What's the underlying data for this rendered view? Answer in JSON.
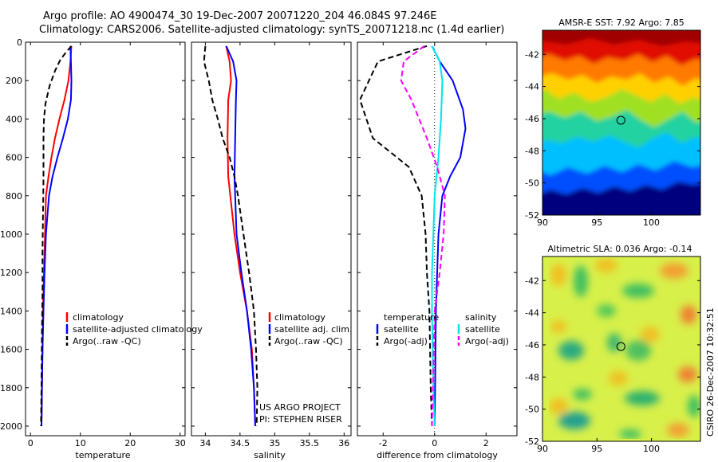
{
  "title": {
    "line1": "Argo profile: AO 4900474_30 19-Dec-2007 20071220_204 46.084S 97.246E",
    "line2": "Climatology: CARS2006. Satellite-adjusted climatology: synTS_20071218.nc (1.4d earlier)"
  },
  "colors": {
    "climatology": "#ff0000",
    "satellite": "#0000ff",
    "argo": "#000000",
    "satellite_salinity": "#00e5ee",
    "argo_salinity_diff": "#ff00ff"
  },
  "chart_data": [
    {
      "type": "line",
      "xlabel": "temperature",
      "xlim": [
        -1,
        31
      ],
      "ylim": [
        2050,
        0
      ],
      "xticks": [
        "0",
        "10",
        "20",
        "30"
      ],
      "xtick_values": [
        0,
        10,
        20,
        30
      ],
      "yticks": [
        "0",
        "200",
        "400",
        "600",
        "800",
        "1000",
        "1200",
        "1400",
        "1600",
        "1800",
        "2000"
      ],
      "ytick_values": [
        0,
        200,
        400,
        600,
        800,
        1000,
        1200,
        1400,
        1600,
        1800,
        2000
      ],
      "legend": [
        "climatology",
        "satellite-adjusted climatology",
        "Argo(..raw -QC)"
      ],
      "series": [
        {
          "name": "climatology",
          "color": "#ff0000",
          "dash": "",
          "points": [
            [
              8.2,
              20
            ],
            [
              8.0,
              100
            ],
            [
              7.6,
              200
            ],
            [
              6.8,
              300
            ],
            [
              5.8,
              400
            ],
            [
              4.9,
              500
            ],
            [
              4.2,
              600
            ],
            [
              3.6,
              700
            ],
            [
              3.1,
              800
            ],
            [
              2.9,
              1000
            ],
            [
              2.7,
              1200
            ],
            [
              2.5,
              1400
            ],
            [
              2.4,
              1600
            ],
            [
              2.3,
              1800
            ],
            [
              2.2,
              2000
            ]
          ]
        },
        {
          "name": "satellite-adjusted climatology",
          "color": "#0000ff",
          "dash": "",
          "points": [
            [
              8.0,
              20
            ],
            [
              8.1,
              100
            ],
            [
              8.2,
              200
            ],
            [
              8.1,
              300
            ],
            [
              7.5,
              400
            ],
            [
              6.5,
              500
            ],
            [
              5.4,
              600
            ],
            [
              4.4,
              700
            ],
            [
              3.7,
              800
            ],
            [
              3.1,
              1000
            ],
            [
              2.8,
              1200
            ],
            [
              2.6,
              1400
            ],
            [
              2.4,
              1600
            ],
            [
              2.3,
              1800
            ],
            [
              2.2,
              2000
            ]
          ]
        },
        {
          "name": "Argo(..raw -QC)",
          "color": "#000000",
          "dash": "7,4",
          "points": [
            [
              8.2,
              20
            ],
            [
              7.2,
              50
            ],
            [
              6.0,
              90
            ],
            [
              4.9,
              150
            ],
            [
              3.8,
              230
            ],
            [
              3.0,
              320
            ],
            [
              2.7,
              400
            ],
            [
              2.6,
              500
            ],
            [
              2.6,
              700
            ],
            [
              2.5,
              900
            ],
            [
              2.4,
              1100
            ],
            [
              2.4,
              1300
            ],
            [
              2.3,
              1500
            ],
            [
              2.2,
              1800
            ],
            [
              2.1,
              2000
            ]
          ]
        }
      ]
    },
    {
      "type": "line",
      "xlabel": "salinity",
      "xlim": [
        33.8,
        36.1
      ],
      "ylim": [
        2050,
        0
      ],
      "xticks": [
        "34",
        "34.5",
        "35",
        "35.5",
        "36"
      ],
      "xtick_values": [
        34,
        34.5,
        35,
        35.5,
        36
      ],
      "legend": [
        "climatology",
        "satellite adj. clim.",
        "Argo(..raw -QC)"
      ],
      "annotation": [
        "US ARGO PROJECT",
        "PI: STEPHEN RISER"
      ],
      "series": [
        {
          "name": "climatology",
          "color": "#ff0000",
          "dash": "",
          "points": [
            [
              34.3,
              20
            ],
            [
              34.35,
              100
            ],
            [
              34.37,
              200
            ],
            [
              34.33,
              300
            ],
            [
              34.32,
              500
            ],
            [
              34.33,
              700
            ],
            [
              34.36,
              800
            ],
            [
              34.42,
              1000
            ],
            [
              34.5,
              1200
            ],
            [
              34.6,
              1400
            ],
            [
              34.67,
              1600
            ],
            [
              34.7,
              1800
            ],
            [
              34.72,
              2000
            ]
          ]
        },
        {
          "name": "satellite adj. clim.",
          "color": "#0000ff",
          "dash": "",
          "points": [
            [
              34.3,
              20
            ],
            [
              34.4,
              100
            ],
            [
              34.45,
              200
            ],
            [
              34.44,
              300
            ],
            [
              34.43,
              500
            ],
            [
              34.42,
              700
            ],
            [
              34.43,
              800
            ],
            [
              34.45,
              1000
            ],
            [
              34.52,
              1200
            ],
            [
              34.6,
              1400
            ],
            [
              34.66,
              1600
            ],
            [
              34.7,
              1800
            ],
            [
              34.72,
              2000
            ]
          ]
        },
        {
          "name": "Argo(..raw -QC)",
          "color": "#000000",
          "dash": "7,4",
          "points": [
            [
              34.0,
              20
            ],
            [
              33.98,
              100
            ],
            [
              34.05,
              200
            ],
            [
              34.1,
              300
            ],
            [
              34.18,
              400
            ],
            [
              34.25,
              500
            ],
            [
              34.35,
              600
            ],
            [
              34.42,
              700
            ],
            [
              34.47,
              800
            ],
            [
              34.55,
              1000
            ],
            [
              34.63,
              1200
            ],
            [
              34.7,
              1400
            ],
            [
              34.73,
              1600
            ],
            [
              34.75,
              1800
            ],
            [
              34.74,
              2000
            ]
          ]
        }
      ]
    },
    {
      "type": "line",
      "xlabel": "difference from climatology",
      "xlim": [
        -3,
        3.2
      ],
      "ylim": [
        2050,
        0
      ],
      "xticks": [
        "-2",
        "0",
        "2"
      ],
      "xtick_values": [
        -2,
        0,
        2
      ],
      "legend_left_title": "temperature",
      "legend_left": [
        "satellite",
        "Argo(-adj)"
      ],
      "legend_right_title": "salinity",
      "legend_right": [
        "satellite",
        "Argo(-adj)"
      ],
      "series": [
        {
          "name": "temperature satellite",
          "color": "#0000ff",
          "dash": "",
          "points": [
            [
              -0.1,
              20
            ],
            [
              0.2,
              100
            ],
            [
              0.7,
              200
            ],
            [
              1.1,
              350
            ],
            [
              1.2,
              450
            ],
            [
              1.0,
              600
            ],
            [
              0.6,
              700
            ],
            [
              0.3,
              800
            ],
            [
              0.15,
              1000
            ],
            [
              0.1,
              1200
            ],
            [
              0.05,
              1400
            ],
            [
              0.02,
              1800
            ],
            [
              0.0,
              2000
            ]
          ]
        },
        {
          "name": "temperature Argo(-adj)",
          "color": "#000000",
          "dash": "7,4",
          "points": [
            [
              -0.3,
              20
            ],
            [
              -2.2,
              100
            ],
            [
              -2.9,
              300
            ],
            [
              -2.4,
              500
            ],
            [
              -1.0,
              650
            ],
            [
              -0.5,
              800
            ],
            [
              -0.35,
              1000
            ],
            [
              -0.3,
              1200
            ],
            [
              -0.2,
              1400
            ],
            [
              -0.15,
              1800
            ],
            [
              -0.1,
              2000
            ]
          ]
        },
        {
          "name": "salinity satellite",
          "color": "#00e5ee",
          "dash": "",
          "points": [
            [
              -0.1,
              20
            ],
            [
              0.2,
              100
            ],
            [
              0.3,
              200
            ],
            [
              0.25,
              400
            ],
            [
              0.15,
              600
            ],
            [
              0.0,
              800
            ],
            [
              -0.05,
              1000
            ],
            [
              -0.1,
              1200
            ],
            [
              -0.1,
              1400
            ],
            [
              -0.05,
              1800
            ],
            [
              0.0,
              2000
            ]
          ]
        },
        {
          "name": "salinity Argo(-adj)",
          "color": "#ff00ff",
          "dash": "7,4",
          "points": [
            [
              -0.4,
              20
            ],
            [
              -1.2,
              100
            ],
            [
              -1.3,
              200
            ],
            [
              -0.9,
              300
            ],
            [
              -0.6,
              400
            ],
            [
              -0.3,
              500
            ],
            [
              0.1,
              650
            ],
            [
              0.4,
              800
            ],
            [
              0.35,
              1000
            ],
            [
              0.2,
              1200
            ],
            [
              0.0,
              1400
            ],
            [
              -0.1,
              2000
            ]
          ]
        }
      ]
    },
    {
      "type": "heatmap",
      "title": "AMSR-E SST: 7.92 Argo: 7.85",
      "xlim": [
        90,
        104.5
      ],
      "ylim": [
        -52,
        -40.5
      ],
      "xticks": [
        "90",
        "95",
        "100"
      ],
      "xtick_values": [
        90,
        95,
        100
      ],
      "yticks": [
        "-42",
        "-44",
        "-46",
        "-48",
        "-50",
        "-52"
      ],
      "ytick_values": [
        -42,
        -44,
        -46,
        -48,
        -50,
        -52
      ],
      "marker": [
        97.2,
        -46.1
      ]
    },
    {
      "type": "heatmap",
      "title": "Altimetric SLA: 0.036 Argo: -0.14",
      "xlim": [
        90,
        104.5
      ],
      "ylim": [
        -52,
        -40.5
      ],
      "xticks": [
        "90",
        "95",
        "100"
      ],
      "xtick_values": [
        90,
        95,
        100
      ],
      "yticks": [
        "-42",
        "-44",
        "-46",
        "-48",
        "-50",
        "-52"
      ],
      "ytick_values": [
        -42,
        -44,
        -46,
        -48,
        -50,
        -52
      ],
      "marker": [
        97.2,
        -46.1
      ]
    }
  ],
  "side_note": "CSIRO 26-Dec-2007 10:32:51"
}
